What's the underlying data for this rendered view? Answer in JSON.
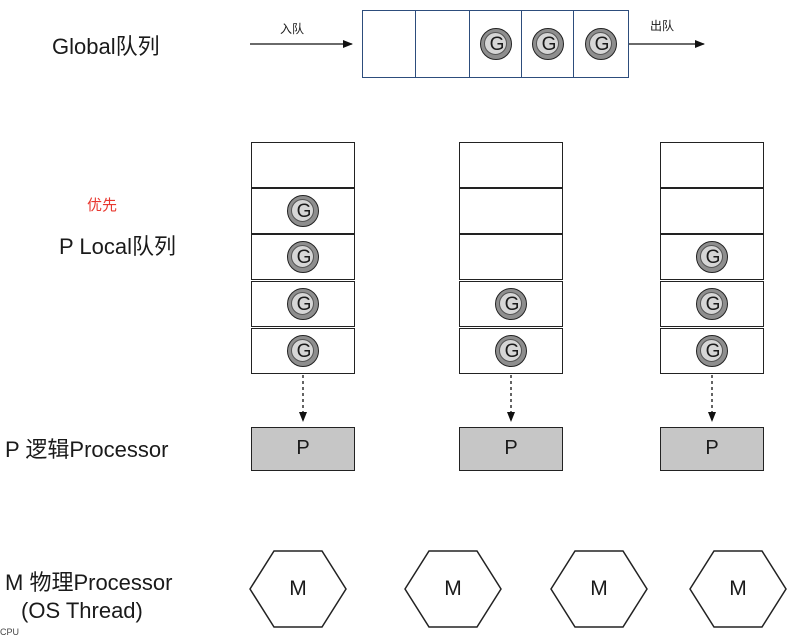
{
  "labels": {
    "global_queue": "Global队列",
    "priority": "优先",
    "p_local_queue": "P Local队列",
    "p_processor": "P 逻辑Processor",
    "m_processor_line1": "M 物理Processor",
    "m_processor_line2": "(OS Thread)",
    "footer": "CPU"
  },
  "global_queue": {
    "enqueue_label": "入队",
    "dequeue_label": "出队",
    "slots": [
      "",
      "",
      "G",
      "G",
      "G"
    ]
  },
  "local_queues": [
    {
      "slots": [
        "",
        "G",
        "G",
        "G",
        "G"
      ]
    },
    {
      "slots": [
        "",
        "",
        "",
        "G",
        "G"
      ]
    },
    {
      "slots": [
        "",
        "",
        "G",
        "G",
        "G"
      ]
    }
  ],
  "processors": [
    "P",
    "P",
    "P"
  ],
  "machines": [
    "M",
    "M",
    "M",
    "M"
  ],
  "colors": {
    "global_queue_border": "#2d4d7c",
    "priority_text": "#e8382f",
    "processor_fill": "#c6c6c6",
    "token_fill": "#8e8e8e"
  }
}
